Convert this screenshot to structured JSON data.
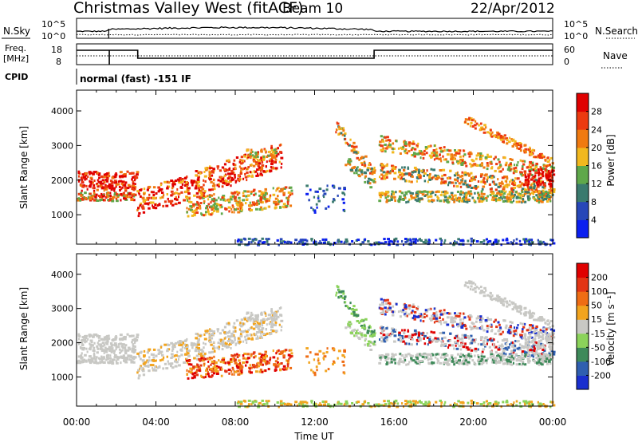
{
  "header": {
    "station": "Christmas Valley West (fitACF)",
    "beam": "Beam 10",
    "date": "22/Apr/2012"
  },
  "chart_data": [
    {
      "type": "line",
      "id": "nsky-nsearch",
      "left_label": "N.Sky",
      "right_label": "N.Search",
      "left_ticks": [
        "10^5",
        "10^0"
      ],
      "right_ticks": [
        "10^5",
        "10^0"
      ]
    },
    {
      "type": "line",
      "id": "freq-nave",
      "left_label_lines": [
        "Freq.",
        "[MHz]"
      ],
      "right_label": "Nave",
      "left_ticks": [
        "18",
        "8"
      ],
      "right_ticks": [
        "60",
        "0"
      ],
      "freq_steps": [
        {
          "from": "00:00",
          "to": "01:45",
          "level": "high"
        },
        {
          "from": "01:45",
          "to": "03:05",
          "level": "high"
        },
        {
          "from": "03:05",
          "to": "15:00",
          "level": "low"
        },
        {
          "from": "15:00",
          "to": "24:00",
          "level": "high"
        }
      ]
    },
    {
      "type": "text",
      "id": "cpid",
      "label": "CPID",
      "value": "normal (fast) -151 IF"
    },
    {
      "type": "heatmap",
      "id": "power",
      "ylabel": "Slant Range [km]",
      "xlabel": "",
      "y_ticks": [
        "1000",
        "2000",
        "3000",
        "4000"
      ],
      "ylim": [
        150,
        4600
      ],
      "colorbar": {
        "title": "Power [dB]",
        "labels": [
          "4",
          "8",
          "12",
          "16",
          "20",
          "24",
          "28"
        ],
        "colors": [
          "#0b1ff0",
          "#2747b8",
          "#3a7a6e",
          "#5fa84a",
          "#f2b81e",
          "#f07a10",
          "#ec3a10",
          "#e00000"
        ]
      }
    },
    {
      "type": "heatmap",
      "id": "velocity",
      "ylabel": "Slant Range [km]",
      "xlabel": "Time UT",
      "y_ticks": [
        "1000",
        "2000",
        "3000",
        "4000"
      ],
      "ylim": [
        150,
        4600
      ],
      "x_ticks": [
        "00:00",
        "04:00",
        "08:00",
        "12:00",
        "16:00",
        "20:00",
        "00:00"
      ],
      "colorbar": {
        "title": "Velocity [m s⁻¹]",
        "labels": [
          "200",
          "100",
          "50",
          "15",
          "-15",
          "-50",
          "-100",
          "-200"
        ],
        "colors": [
          "#1a2fcf",
          "#2f5fb0",
          "#3e8a5a",
          "#8bd35a",
          "#c8c8c4",
          "#f2a41e",
          "#ef6d14",
          "#e33514",
          "#e00000"
        ]
      }
    }
  ]
}
